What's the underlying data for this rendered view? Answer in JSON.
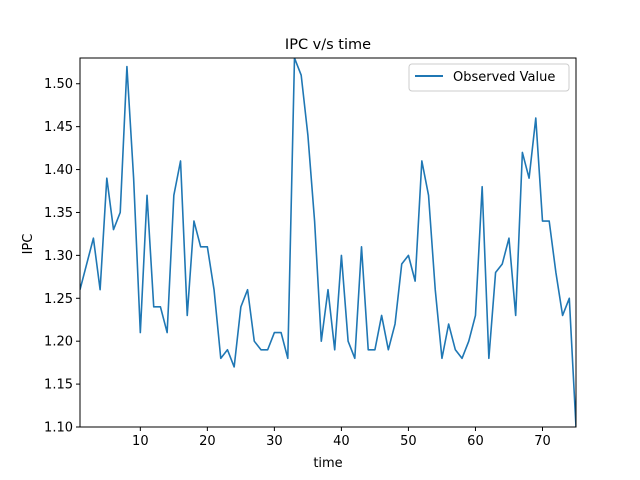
{
  "chart_data": {
    "type": "line",
    "title": "IPC v/s time",
    "xlabel": "time",
    "ylabel": "IPC",
    "xlim": [
      1,
      75
    ],
    "ylim": [
      1.1,
      1.53
    ],
    "xticks": [
      10,
      20,
      30,
      40,
      50,
      60,
      70
    ],
    "yticks": [
      1.1,
      1.15,
      1.2,
      1.25,
      1.3,
      1.35,
      1.4,
      1.45,
      1.5
    ],
    "ytick_labels": [
      "1.10",
      "1.15",
      "1.20",
      "1.25",
      "1.30",
      "1.35",
      "1.40",
      "1.45",
      "1.50"
    ],
    "grid": false,
    "legend_position": "top-right",
    "series": [
      {
        "name": "Observed Value",
        "color": "#1f77b4",
        "x": [
          1,
          2,
          3,
          4,
          5,
          6,
          7,
          8,
          9,
          10,
          11,
          12,
          13,
          14,
          15,
          16,
          17,
          18,
          19,
          20,
          21,
          22,
          23,
          24,
          25,
          26,
          27,
          28,
          29,
          30,
          31,
          32,
          33,
          34,
          35,
          36,
          37,
          38,
          39,
          40,
          41,
          42,
          43,
          44,
          45,
          46,
          47,
          48,
          49,
          50,
          51,
          52,
          53,
          54,
          55,
          56,
          57,
          58,
          59,
          60,
          61,
          62,
          63,
          64,
          65,
          66,
          67,
          68,
          69,
          70,
          71,
          72,
          73,
          74,
          75
        ],
        "values": [
          1.26,
          1.29,
          1.32,
          1.26,
          1.39,
          1.33,
          1.35,
          1.52,
          1.39,
          1.21,
          1.37,
          1.24,
          1.24,
          1.21,
          1.37,
          1.41,
          1.23,
          1.34,
          1.31,
          1.31,
          1.26,
          1.18,
          1.19,
          1.17,
          1.24,
          1.26,
          1.2,
          1.19,
          1.19,
          1.21,
          1.21,
          1.18,
          1.53,
          1.51,
          1.44,
          1.34,
          1.2,
          1.26,
          1.19,
          1.3,
          1.2,
          1.18,
          1.31,
          1.19,
          1.19,
          1.23,
          1.19,
          1.22,
          1.29,
          1.3,
          1.27,
          1.41,
          1.37,
          1.26,
          1.18,
          1.22,
          1.19,
          1.18,
          1.2,
          1.23,
          1.38,
          1.18,
          1.28,
          1.29,
          1.32,
          1.23,
          1.42,
          1.39,
          1.46,
          1.34,
          1.34,
          1.28,
          1.23,
          1.25,
          1.1
        ]
      }
    ]
  }
}
